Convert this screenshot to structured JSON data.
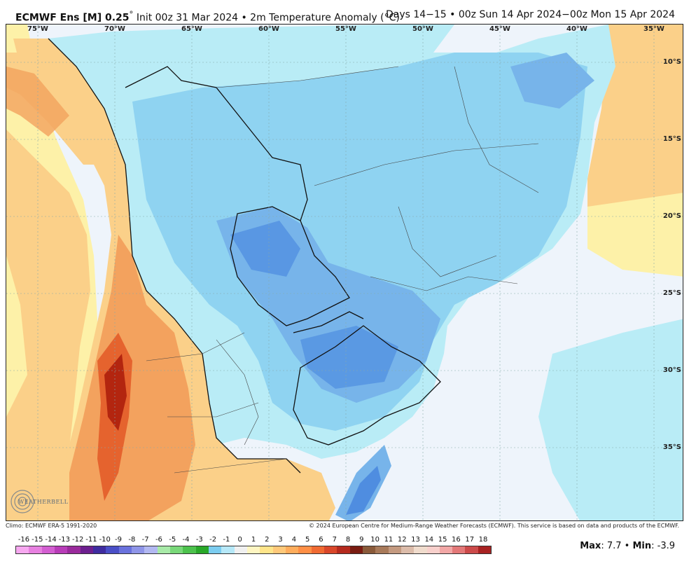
{
  "header": {
    "model": "ECMWF Ens [M] 0.25",
    "degree_mark": "°",
    "init": "Init 00z 31 Mar 2024 • 2m Temperature Anomaly (°C)",
    "valid": "Days 14−15 • 00z Sun 14 Apr 2024−00z Mon 15 Apr 2024"
  },
  "map": {
    "lon_labels": [
      "75°W",
      "70°W",
      "65°W",
      "60°W",
      "55°W",
      "50°W",
      "45°W",
      "40°W",
      "35°W"
    ],
    "lat_labels": [
      "10°S",
      "15°S",
      "20°S",
      "25°S",
      "30°S",
      "35°S"
    ],
    "colors": {
      "ocean": "#eef4fb",
      "warm_light": "#fdf1a8",
      "warm": "#fbd089",
      "warmer": "#f3a25e",
      "hot": "#e5632e",
      "hottest": "#b3250f",
      "cool_light": "#b9ecf6",
      "cool": "#8fd3f1",
      "cooler": "#77b4ea",
      "coolest": "#4f8de0",
      "border": "#111111"
    }
  },
  "footer": {
    "climo": "Climo: ECMWF ERA-5 1991-2020",
    "copyright": "© 2024 European Centre for Medium-Range Weather Forecasts (ECMWF). This service is based on data and products of the ECMWF."
  },
  "legend": {
    "ticks": [
      "-16",
      "-15",
      "-14",
      "-13",
      "-12",
      "-11",
      "-10",
      "-9",
      "-8",
      "-7",
      "-6",
      "-5",
      "-4",
      "-3",
      "-2",
      "-1",
      "0",
      "1",
      "2",
      "3",
      "4",
      "5",
      "6",
      "7",
      "8",
      "9",
      "10",
      "11",
      "12",
      "13",
      "14",
      "15",
      "16",
      "17",
      "18"
    ],
    "colors": [
      "#f7a8f0",
      "#e780e0",
      "#d35ed1",
      "#b83cb8",
      "#9a2a9c",
      "#6d1f8f",
      "#3f2ca0",
      "#4a4fc7",
      "#6a72dd",
      "#8f95e8",
      "#b2b8f1",
      "#a8eaa8",
      "#79d879",
      "#4dc24d",
      "#29a829",
      "#7ccdf0",
      "#b6e8f8",
      "#f0f0f0",
      "#fff6c2",
      "#ffe58a",
      "#ffc97a",
      "#ffad5c",
      "#ff8f45",
      "#f06a32",
      "#d9472a",
      "#b52a1e",
      "#7a1c12",
      "#8a5a3a",
      "#a87a5a",
      "#c49a80",
      "#dcbcaa",
      "#f0dccd",
      "#f8d0cc",
      "#f2a7a6",
      "#e37878",
      "#cc4a4a",
      "#a82222"
    ]
  },
  "stats": {
    "max_label": "Max",
    "max": "7.7",
    "min_label": "Min",
    "min": "-3.9"
  },
  "logo": {
    "text": "WEATHERBELL"
  }
}
